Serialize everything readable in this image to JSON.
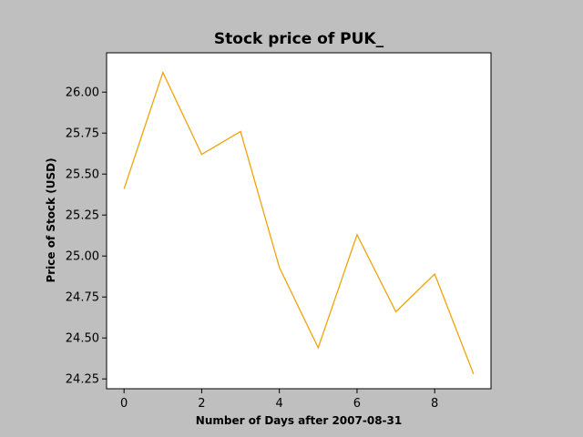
{
  "colors": {
    "background": "#bfbfbf",
    "plot_background": "#ffffff",
    "line": "#f0a30a",
    "axis": "#000000"
  },
  "chart_data": {
    "type": "line",
    "title": "Stock price of PUK_",
    "xlabel": "Number of Days after 2007-08-31",
    "ylabel": "Price of Stock (USD)",
    "x": [
      0,
      1,
      2,
      3,
      4,
      5,
      6,
      7,
      8,
      9
    ],
    "series": [
      {
        "values": [
          25.41,
          26.12,
          25.62,
          25.76,
          24.93,
          24.44,
          25.13,
          24.66,
          24.89,
          24.28
        ]
      }
    ],
    "xlim": [
      -0.45,
      9.45
    ],
    "ylim": [
      24.19,
      26.24
    ],
    "x_ticks": [
      0,
      2,
      4,
      6,
      8
    ],
    "x_tick_labels": [
      "0",
      "2",
      "4",
      "6",
      "8"
    ],
    "y_ticks": [
      24.25,
      24.5,
      24.75,
      25.0,
      25.25,
      25.5,
      25.75,
      26.0
    ],
    "y_tick_labels": [
      "24.25",
      "24.50",
      "24.75",
      "25.00",
      "25.25",
      "25.50",
      "25.75",
      "26.00"
    ],
    "grid": false,
    "legend": "none"
  }
}
